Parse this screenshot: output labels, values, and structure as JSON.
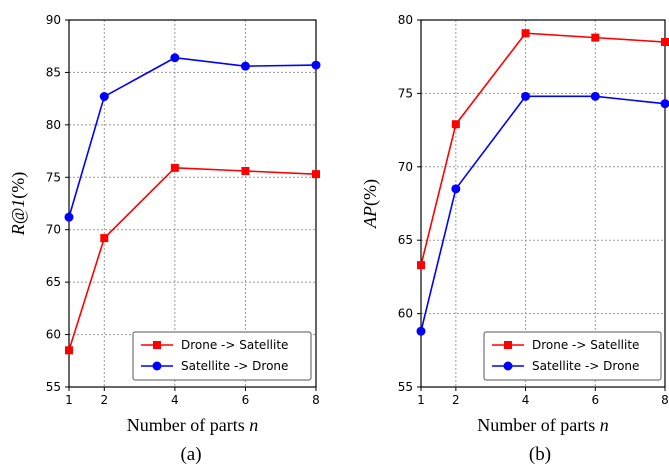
{
  "chart_data": [
    {
      "type": "line",
      "caption": "(a)",
      "xlabel": "Number of parts n",
      "ylabel": "R@1(%)",
      "x": [
        1,
        2,
        4,
        6,
        8
      ],
      "xticks": [
        "1",
        "2",
        "4",
        "6",
        "8"
      ],
      "xlim": [
        1,
        8
      ],
      "ylim": [
        55,
        90
      ],
      "yticks": [
        55,
        60,
        65,
        70,
        75,
        80,
        85,
        90
      ],
      "grid": true,
      "legend_position": "lower-right",
      "series": [
        {
          "name": "Drone -> Satellite",
          "color": "#ff0000",
          "marker": "square",
          "values": [
            58.5,
            69.2,
            75.9,
            75.6,
            75.3
          ]
        },
        {
          "name": "Satellite -> Drone",
          "color": "#0000ff",
          "marker": "circle",
          "values": [
            71.2,
            82.7,
            86.4,
            85.6,
            85.7
          ]
        }
      ]
    },
    {
      "type": "line",
      "caption": "(b)",
      "xlabel": "Number of parts n",
      "ylabel": "AP(%)",
      "x": [
        1,
        2,
        4,
        6,
        8
      ],
      "xticks": [
        "1",
        "2",
        "4",
        "6",
        "8"
      ],
      "xlim": [
        1,
        8
      ],
      "ylim": [
        55,
        80
      ],
      "yticks": [
        55,
        60,
        65,
        70,
        75,
        80
      ],
      "grid": true,
      "legend_position": "lower-right",
      "series": [
        {
          "name": "Drone -> Satellite",
          "color": "#ff0000",
          "marker": "square",
          "values": [
            63.3,
            72.9,
            79.1,
            78.8,
            78.5
          ]
        },
        {
          "name": "Satellite -> Drone",
          "color": "#0000ff",
          "marker": "circle",
          "values": [
            58.8,
            68.5,
            74.8,
            74.8,
            74.3
          ]
        }
      ]
    }
  ]
}
